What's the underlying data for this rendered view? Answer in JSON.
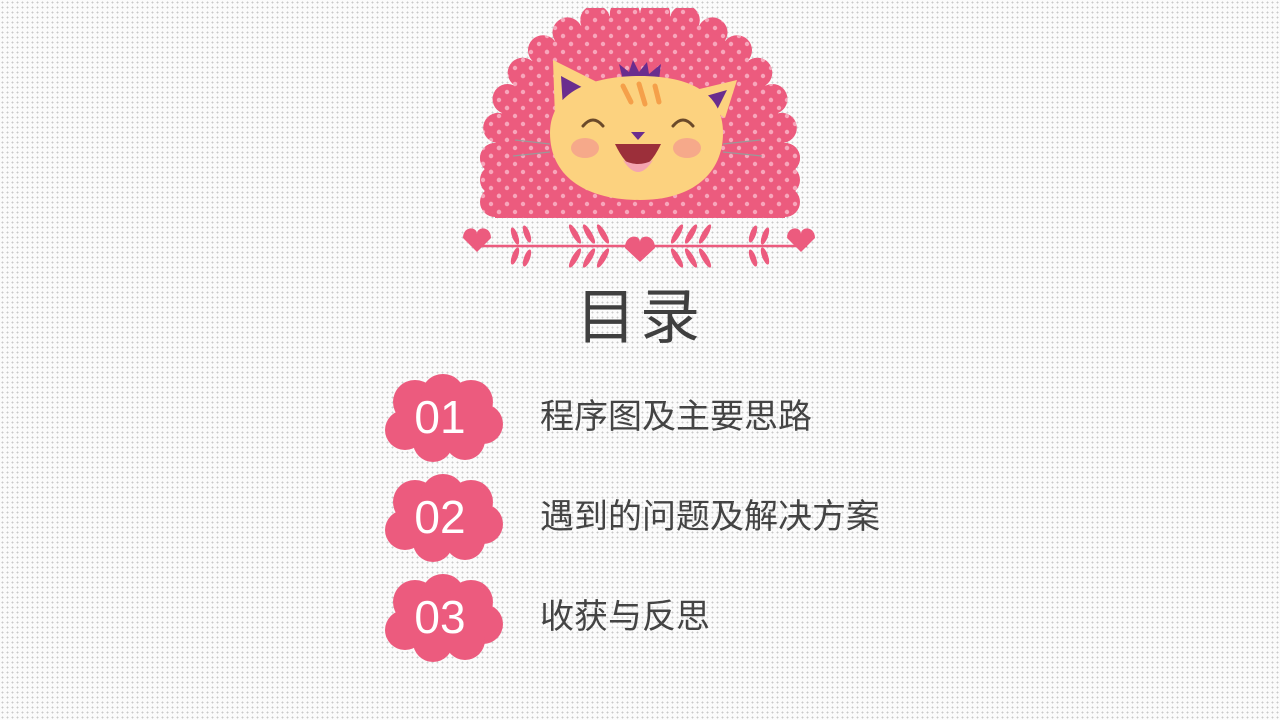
{
  "page": {
    "title": "目录",
    "accent_color": "#e85a7f",
    "text_color": "#444444"
  },
  "illustration": {
    "description_icon": "smiling-cat-icon",
    "background": "pink-polka-dot-scallop",
    "ornament": "heart-vine-divider-icon"
  },
  "toc": {
    "items": [
      {
        "number": "01",
        "label": "程序图及主要思路"
      },
      {
        "number": "02",
        "label": "遇到的问题及解决方案"
      },
      {
        "number": "03",
        "label": "收获与反思"
      }
    ]
  }
}
